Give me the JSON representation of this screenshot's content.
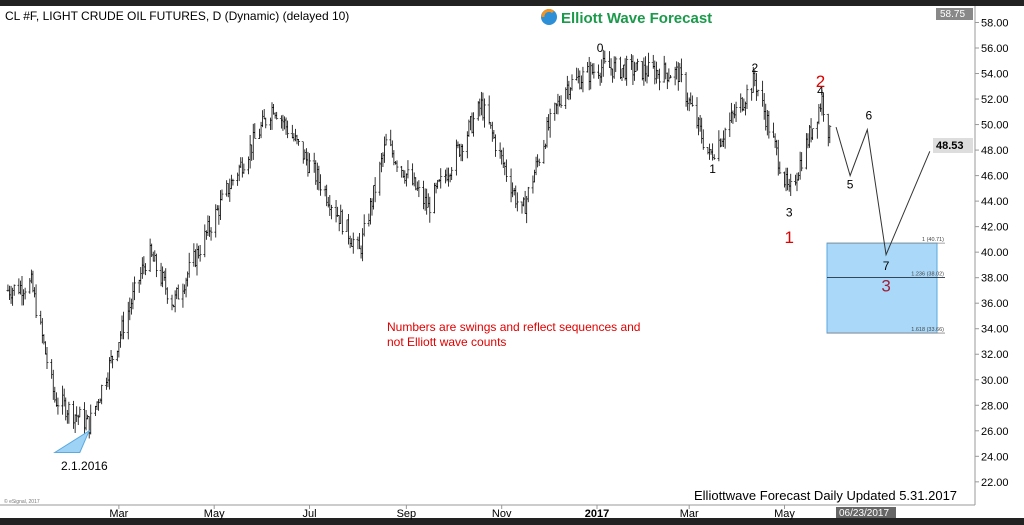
{
  "header": {
    "title": "CL #F, LIGHT CRUDE OIL FUTURES, D (Dynamic) (delayed 10)",
    "logo_text": "Elliott Wave Forecast"
  },
  "footer": {
    "update_text": "Elliottwave Forecast Daily Updated 5.31.2017",
    "copyright": "© eSignal, 2017",
    "cursor_date": "06/23/2017"
  },
  "colors": {
    "bars": "#000000",
    "box": "#a9d8f8",
    "box_border": "#5aa9e0",
    "red": "#e00000",
    "dark_red": "#a0203a",
    "logo": "#1a9a4a",
    "triangle": "#9fd3f5"
  },
  "chart_data": {
    "type": "ohlc-bar",
    "title": "CL #F, LIGHT CRUDE OIL FUTURES, D (Dynamic) (delayed 10)",
    "x_tick_labels": [
      "Mar",
      "May",
      "Jul",
      "Sep",
      "Nov",
      "2017",
      "Mar",
      "May"
    ],
    "y_tick_labels": [
      "58.00",
      "56.00",
      "54.00",
      "52.00",
      "50.00",
      "48.00",
      "46.00",
      "44.00",
      "42.00",
      "40.00",
      "38.00",
      "36.00",
      "34.00",
      "32.00",
      "30.00",
      "28.00",
      "26.00",
      "24.00",
      "22.00"
    ],
    "ylim": [
      21,
      59
    ],
    "last_price": "48.53",
    "top_price": "58.75",
    "price_path_approx": [
      [
        "2015-12-20",
        37
      ],
      [
        "2016-01-05",
        37.5
      ],
      [
        "2016-01-20",
        28.5
      ],
      [
        "2016-02-11",
        26.5
      ],
      [
        "2016-03-20",
        40
      ],
      [
        "2016-04-05",
        36
      ],
      [
        "2016-05-10",
        45
      ],
      [
        "2016-06-08",
        51.5
      ],
      [
        "2016-07-10",
        45
      ],
      [
        "2016-08-02",
        40
      ],
      [
        "2016-08-19",
        48.5
      ],
      [
        "2016-09-15",
        43.5
      ],
      [
        "2016-10-19",
        51.5
      ],
      [
        "2016-11-14",
        43
      ],
      [
        "2016-11-30",
        49.5
      ],
      [
        "2016-12-12",
        53
      ],
      [
        "2017-01-03",
        54.5
      ],
      [
        "2017-02-22",
        54
      ],
      [
        "2017-03-14",
        47.5
      ],
      [
        "2017-04-12",
        53.5
      ],
      [
        "2017-05-04",
        44.5
      ],
      [
        "2017-05-25",
        52
      ],
      [
        "2017-05-31",
        48.5
      ]
    ],
    "projection_path": [
      [
        "2017-06-03",
        49.8
      ],
      [
        "2017-06-12",
        46
      ],
      [
        "2017-06-23",
        49.6
      ],
      [
        "2017-07-05",
        39.8
      ],
      [
        "2017-08-02",
        47.9
      ]
    ],
    "fib_levels": [
      {
        "label": "1 (40.71)",
        "value": 40.71
      },
      {
        "label": "1.236 (38.02)",
        "value": 38.02
      },
      {
        "label": "1.618 (33.66)",
        "value": 33.66
      }
    ],
    "swing_labels": [
      {
        "text": "0",
        "date": "2017-01-03",
        "price": 55.7,
        "color": "black"
      },
      {
        "text": "1",
        "date": "2017-03-16",
        "price": 46.2,
        "color": "black"
      },
      {
        "text": "2",
        "date": "2017-04-12",
        "price": 54.1,
        "color": "black"
      },
      {
        "text": "3",
        "date": "2017-05-04",
        "price": 42.8,
        "color": "black"
      },
      {
        "text": "4",
        "date": "2017-05-24",
        "price": 52.3,
        "color": "black"
      },
      {
        "text": "5",
        "date": "2017-06-12",
        "price": 45.0,
        "color": "black"
      },
      {
        "text": "6",
        "date": "2017-06-24",
        "price": 50.4,
        "color": "black"
      },
      {
        "text": "7",
        "date": "2017-07-05",
        "price": 38.6,
        "color": "black"
      },
      {
        "text": "1",
        "date": "2017-05-04",
        "price": 41.2,
        "color": "red"
      },
      {
        "text": "2",
        "date": "2017-05-24",
        "price": 53.4,
        "color": "red"
      },
      {
        "text": "3",
        "date": "2017-07-05",
        "price": 37.4,
        "color": "dark_red"
      }
    ],
    "low_label": "2.1.2016",
    "annotation": [
      "Numbers are swings and reflect sequences and",
      "not Elliott wave counts"
    ]
  }
}
